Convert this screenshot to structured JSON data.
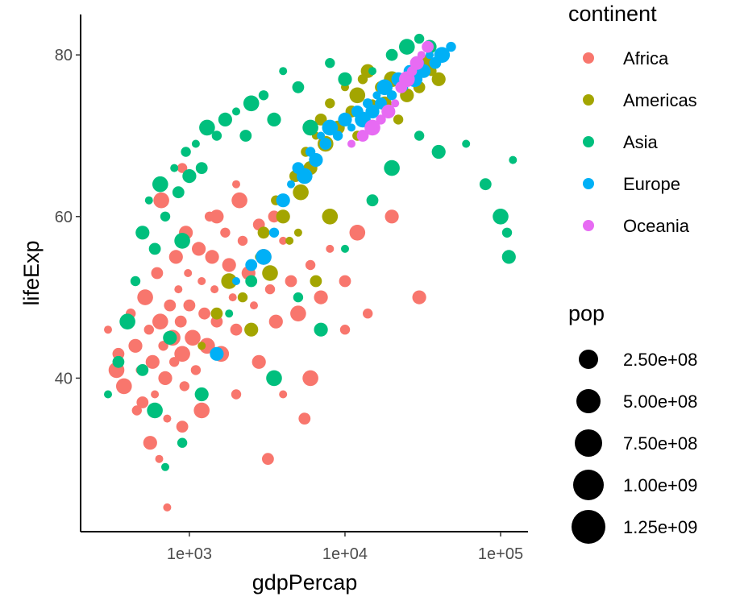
{
  "chart_data": {
    "type": "scatter",
    "x_scale": "log10",
    "xlabel": "gdpPercap",
    "ylabel": "lifeExp",
    "xlim": [
      200,
      150000
    ],
    "ylim": [
      21,
      85
    ],
    "x_ticks": [
      {
        "value": 1000,
        "label": "1e+03"
      },
      {
        "value": 10000,
        "label": "1e+04"
      },
      {
        "value": 100000,
        "label": "1e+05"
      }
    ],
    "y_ticks": [
      {
        "value": 40,
        "label": "40"
      },
      {
        "value": 60,
        "label": "60"
      },
      {
        "value": 80,
        "label": "80"
      }
    ],
    "grid": false,
    "legend_position": "right",
    "color_legend": {
      "title": "continent",
      "entries": [
        {
          "name": "Africa",
          "color": "#F8766D"
        },
        {
          "name": "Americas",
          "color": "#A3A500"
        },
        {
          "name": "Asia",
          "color": "#00BF7D"
        },
        {
          "name": "Europe",
          "color": "#00B0F6"
        },
        {
          "name": "Oceania",
          "color": "#E76BF3"
        }
      ]
    },
    "size_legend": {
      "title": "pop",
      "entries": [
        {
          "value": 250000000,
          "label": "2.50e+08"
        },
        {
          "value": 500000000,
          "label": "5.00e+08"
        },
        {
          "value": 750000000,
          "label": "7.50e+08"
        },
        {
          "value": 1000000000,
          "label": "1.00e+09"
        },
        {
          "value": 1250000000,
          "label": "1.25e+09"
        }
      ]
    },
    "series": [
      {
        "name": "Africa",
        "color": "#F8766D",
        "points": [
          [
            300,
            46
          ],
          [
            350,
            43
          ],
          [
            380,
            39
          ],
          [
            420,
            48
          ],
          [
            450,
            44
          ],
          [
            480,
            41
          ],
          [
            500,
            37
          ],
          [
            520,
            50
          ],
          [
            550,
            46
          ],
          [
            580,
            42
          ],
          [
            600,
            38
          ],
          [
            620,
            53
          ],
          [
            650,
            47
          ],
          [
            680,
            44
          ],
          [
            700,
            40
          ],
          [
            720,
            35
          ],
          [
            750,
            49
          ],
          [
            780,
            45
          ],
          [
            800,
            42
          ],
          [
            820,
            55
          ],
          [
            850,
            51
          ],
          [
            880,
            47
          ],
          [
            900,
            43
          ],
          [
            930,
            39
          ],
          [
            950,
            58
          ],
          [
            980,
            53
          ],
          [
            1000,
            49
          ],
          [
            1050,
            45
          ],
          [
            1100,
            41
          ],
          [
            1150,
            56
          ],
          [
            1200,
            52
          ],
          [
            1250,
            48
          ],
          [
            1300,
            44
          ],
          [
            1350,
            60
          ],
          [
            1400,
            55
          ],
          [
            1450,
            51
          ],
          [
            1500,
            47
          ],
          [
            1600,
            43
          ],
          [
            1700,
            58
          ],
          [
            1800,
            54
          ],
          [
            1900,
            50
          ],
          [
            2000,
            46
          ],
          [
            2100,
            62
          ],
          [
            2200,
            57
          ],
          [
            2400,
            53
          ],
          [
            2600,
            49
          ],
          [
            2800,
            59
          ],
          [
            3000,
            55
          ],
          [
            3300,
            51
          ],
          [
            3600,
            47
          ],
          [
            4000,
            57
          ],
          [
            4500,
            52
          ],
          [
            5000,
            48
          ],
          [
            6000,
            54
          ],
          [
            7000,
            50
          ],
          [
            8000,
            56
          ],
          [
            10000,
            52
          ],
          [
            12000,
            58
          ],
          [
            14000,
            48
          ],
          [
            20000,
            60
          ],
          [
            720,
            24
          ],
          [
            3200,
            30
          ],
          [
            340,
            41
          ],
          [
            460,
            36
          ],
          [
            560,
            32
          ],
          [
            640,
            30
          ],
          [
            900,
            34
          ],
          [
            1200,
            36
          ],
          [
            2000,
            38
          ],
          [
            2800,
            42
          ],
          [
            4000,
            38
          ],
          [
            5500,
            35
          ],
          [
            660,
            62
          ],
          [
            900,
            66
          ],
          [
            1500,
            60
          ],
          [
            2000,
            64
          ],
          [
            3500,
            60
          ],
          [
            6000,
            40
          ],
          [
            10000,
            46
          ],
          [
            30000,
            50
          ]
        ]
      },
      {
        "name": "Americas",
        "color": "#A3A500",
        "points": [
          [
            1200,
            44
          ],
          [
            1500,
            48
          ],
          [
            1800,
            52
          ],
          [
            2200,
            50
          ],
          [
            2500,
            46
          ],
          [
            2800,
            55
          ],
          [
            3000,
            58
          ],
          [
            3300,
            53
          ],
          [
            3600,
            62
          ],
          [
            4000,
            60
          ],
          [
            4400,
            57
          ],
          [
            4800,
            65
          ],
          [
            5200,
            63
          ],
          [
            5600,
            68
          ],
          [
            6000,
            66
          ],
          [
            6500,
            70
          ],
          [
            7000,
            72
          ],
          [
            7500,
            69
          ],
          [
            8000,
            74
          ],
          [
            9000,
            71
          ],
          [
            10000,
            76
          ],
          [
            11000,
            73
          ],
          [
            12000,
            75
          ],
          [
            13000,
            77
          ],
          [
            14000,
            78
          ],
          [
            15000,
            74
          ],
          [
            17000,
            76
          ],
          [
            20000,
            77
          ],
          [
            22000,
            72
          ],
          [
            25000,
            75
          ],
          [
            28000,
            78
          ],
          [
            30000,
            76
          ],
          [
            33000,
            79
          ],
          [
            36000,
            78
          ],
          [
            40000,
            77
          ],
          [
            5000,
            58
          ],
          [
            6500,
            52
          ],
          [
            8000,
            60
          ],
          [
            12000,
            70
          ],
          [
            18000,
            74
          ]
        ]
      },
      {
        "name": "Asia",
        "color": "#00BF7D",
        "points": [
          [
            300,
            38
          ],
          [
            350,
            42
          ],
          [
            400,
            47
          ],
          [
            450,
            52
          ],
          [
            500,
            58
          ],
          [
            550,
            62
          ],
          [
            600,
            56
          ],
          [
            650,
            64
          ],
          [
            700,
            60
          ],
          [
            750,
            45
          ],
          [
            800,
            66
          ],
          [
            850,
            63
          ],
          [
            900,
            57
          ],
          [
            950,
            68
          ],
          [
            1000,
            65
          ],
          [
            1100,
            69
          ],
          [
            1200,
            66
          ],
          [
            1300,
            71
          ],
          [
            1500,
            70
          ],
          [
            1700,
            72
          ],
          [
            2000,
            73
          ],
          [
            2300,
            70
          ],
          [
            2500,
            74
          ],
          [
            3000,
            75
          ],
          [
            3500,
            72
          ],
          [
            4000,
            78
          ],
          [
            5000,
            76
          ],
          [
            6000,
            71
          ],
          [
            8000,
            79
          ],
          [
            10000,
            77
          ],
          [
            15000,
            78
          ],
          [
            20000,
            80
          ],
          [
            25000,
            81
          ],
          [
            30000,
            82
          ],
          [
            35000,
            81
          ],
          [
            700,
            29
          ],
          [
            500,
            41
          ],
          [
            600,
            36
          ],
          [
            900,
            32
          ],
          [
            1200,
            38
          ],
          [
            1800,
            48
          ],
          [
            2500,
            52
          ],
          [
            3500,
            40
          ],
          [
            5000,
            50
          ],
          [
            7000,
            46
          ],
          [
            10000,
            56
          ],
          [
            15000,
            62
          ],
          [
            20000,
            66
          ],
          [
            30000,
            70
          ],
          [
            40000,
            68
          ],
          [
            60000,
            69
          ],
          [
            80000,
            64
          ],
          [
            100000,
            60
          ],
          [
            110000,
            58
          ],
          [
            113000,
            55
          ],
          [
            120000,
            67
          ]
        ]
      },
      {
        "name": "Europe",
        "color": "#00B0F6",
        "points": [
          [
            2000,
            52
          ],
          [
            2500,
            54
          ],
          [
            3000,
            55
          ],
          [
            3500,
            58
          ],
          [
            4000,
            62
          ],
          [
            4500,
            64
          ],
          [
            5000,
            66
          ],
          [
            5500,
            65
          ],
          [
            6000,
            68
          ],
          [
            6500,
            67
          ],
          [
            7000,
            70
          ],
          [
            7500,
            69
          ],
          [
            8000,
            71
          ],
          [
            9000,
            70
          ],
          [
            10000,
            72
          ],
          [
            11000,
            71
          ],
          [
            12000,
            73
          ],
          [
            13000,
            72
          ],
          [
            14000,
            74
          ],
          [
            15000,
            73
          ],
          [
            16000,
            75
          ],
          [
            17000,
            74
          ],
          [
            18000,
            76
          ],
          [
            20000,
            75
          ],
          [
            22000,
            77
          ],
          [
            24000,
            76
          ],
          [
            26000,
            78
          ],
          [
            28000,
            77
          ],
          [
            30000,
            79
          ],
          [
            32000,
            78
          ],
          [
            35000,
            80
          ],
          [
            38000,
            79
          ],
          [
            42000,
            80
          ],
          [
            48000,
            81
          ],
          [
            1500,
            43
          ]
        ]
      },
      {
        "name": "Oceania",
        "color": "#E76BF3",
        "points": [
          [
            11000,
            69
          ],
          [
            13000,
            70
          ],
          [
            15000,
            71
          ],
          [
            17000,
            72
          ],
          [
            19000,
            73
          ],
          [
            21000,
            74
          ],
          [
            23000,
            76
          ],
          [
            25000,
            77
          ],
          [
            27000,
            78
          ],
          [
            29000,
            79
          ],
          [
            31000,
            80
          ],
          [
            34000,
            81
          ]
        ]
      }
    ]
  }
}
